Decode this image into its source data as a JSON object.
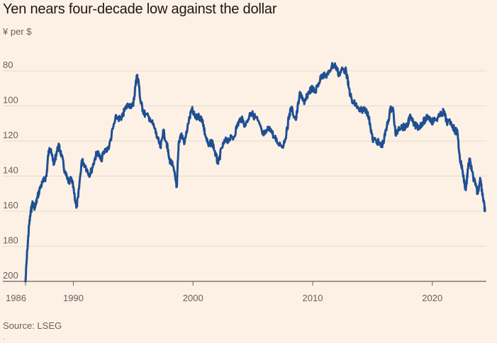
{
  "title": "Yen nears four-decade low against the dollar",
  "unit_label": "¥ per $",
  "source": "Source: LSEG",
  "footnote_mark": "·",
  "colors": {
    "background": "#fdf1e5",
    "line": "#1f4f93",
    "grid": "#e6d9ce",
    "axis": "#66605c"
  },
  "chart_data": {
    "type": "line",
    "title": "Yen nears four-decade low against the dollar",
    "ylabel": "¥ per $",
    "xlabel": "",
    "y_inverted": true,
    "ylim": [
      200,
      75
    ],
    "xlim": [
      1986.0,
      2024.4
    ],
    "yticks": [
      80,
      100,
      120,
      140,
      160,
      180,
      200
    ],
    "xticks": [
      1986,
      1990,
      2000,
      2010,
      2020
    ],
    "grid": true,
    "series": [
      {
        "name": "¥ per $",
        "points": [
          [
            1986.0,
            200
          ],
          [
            1986.15,
            182
          ],
          [
            1986.3,
            168
          ],
          [
            1986.45,
            160
          ],
          [
            1986.6,
            155
          ],
          [
            1986.8,
            158
          ],
          [
            1987.0,
            152
          ],
          [
            1987.25,
            146
          ],
          [
            1987.5,
            143
          ],
          [
            1987.75,
            140
          ],
          [
            1987.9,
            128
          ],
          [
            1988.0,
            124
          ],
          [
            1988.2,
            128
          ],
          [
            1988.4,
            133
          ],
          [
            1988.6,
            126
          ],
          [
            1988.8,
            123
          ],
          [
            1989.0,
            128
          ],
          [
            1989.3,
            138
          ],
          [
            1989.6,
            144
          ],
          [
            1989.8,
            142
          ],
          [
            1990.0,
            146
          ],
          [
            1990.25,
            158
          ],
          [
            1990.4,
            152
          ],
          [
            1990.7,
            131
          ],
          [
            1991.0,
            134
          ],
          [
            1991.3,
            139
          ],
          [
            1991.5,
            137
          ],
          [
            1991.8,
            130
          ],
          [
            1992.0,
            126
          ],
          [
            1992.3,
            131
          ],
          [
            1992.6,
            126
          ],
          [
            1993.0,
            123
          ],
          [
            1993.3,
            113
          ],
          [
            1993.6,
            106
          ],
          [
            1994.0,
            108
          ],
          [
            1994.3,
            102
          ],
          [
            1994.6,
            99
          ],
          [
            1995.0,
            100
          ],
          [
            1995.2,
            88
          ],
          [
            1995.3,
            83
          ],
          [
            1995.45,
            86
          ],
          [
            1995.6,
            97
          ],
          [
            1995.8,
            102
          ],
          [
            1996.0,
            105
          ],
          [
            1996.4,
            107
          ],
          [
            1996.8,
            113
          ],
          [
            1997.0,
            118
          ],
          [
            1997.3,
            124
          ],
          [
            1997.5,
            114
          ],
          [
            1997.8,
            121
          ],
          [
            1998.0,
            130
          ],
          [
            1998.3,
            134
          ],
          [
            1998.6,
            144
          ],
          [
            1998.65,
            146
          ],
          [
            1998.8,
            121
          ],
          [
            1999.0,
            116
          ],
          [
            1999.3,
            121
          ],
          [
            1999.6,
            110
          ],
          [
            1999.9,
            102
          ],
          [
            2000.2,
            107
          ],
          [
            2000.5,
            106
          ],
          [
            2000.8,
            108
          ],
          [
            2001.0,
            116
          ],
          [
            2001.3,
            123
          ],
          [
            2001.6,
            120
          ],
          [
            2001.9,
            128
          ],
          [
            2002.1,
            133
          ],
          [
            2002.4,
            124
          ],
          [
            2002.7,
            120
          ],
          [
            2003.0,
            119
          ],
          [
            2003.4,
            118
          ],
          [
            2003.7,
            111
          ],
          [
            2004.0,
            107
          ],
          [
            2004.4,
            111
          ],
          [
            2004.8,
            104
          ],
          [
            2005.0,
            105
          ],
          [
            2005.4,
            108
          ],
          [
            2005.8,
            116
          ],
          [
            2006.0,
            116
          ],
          [
            2006.4,
            112
          ],
          [
            2006.8,
            118
          ],
          [
            2007.0,
            120
          ],
          [
            2007.5,
            123
          ],
          [
            2007.8,
            116
          ],
          [
            2008.0,
            107
          ],
          [
            2008.2,
            101
          ],
          [
            2008.6,
            108
          ],
          [
            2008.9,
            94
          ],
          [
            2009.1,
            94
          ],
          [
            2009.3,
            99
          ],
          [
            2009.6,
            93
          ],
          [
            2009.9,
            90
          ],
          [
            2010.2,
            92
          ],
          [
            2010.5,
            87
          ],
          [
            2010.8,
            82
          ],
          [
            2011.0,
            83
          ],
          [
            2011.3,
            82
          ],
          [
            2011.6,
            77
          ],
          [
            2011.9,
            77
          ],
          [
            2012.2,
            82
          ],
          [
            2012.5,
            79
          ],
          [
            2012.8,
            80
          ],
          [
            2013.0,
            89
          ],
          [
            2013.3,
            98
          ],
          [
            2013.6,
            99
          ],
          [
            2013.9,
            103
          ],
          [
            2014.2,
            102
          ],
          [
            2014.5,
            102
          ],
          [
            2014.8,
            110
          ],
          [
            2015.0,
            119
          ],
          [
            2015.4,
            120
          ],
          [
            2015.7,
            123
          ],
          [
            2015.9,
            121
          ],
          [
            2016.2,
            112
          ],
          [
            2016.5,
            102
          ],
          [
            2016.7,
            101
          ],
          [
            2016.95,
            117
          ],
          [
            2017.2,
            112
          ],
          [
            2017.5,
            112
          ],
          [
            2017.9,
            112
          ],
          [
            2018.1,
            106
          ],
          [
            2018.5,
            111
          ],
          [
            2018.9,
            112
          ],
          [
            2019.1,
            110
          ],
          [
            2019.4,
            108
          ],
          [
            2019.7,
            106
          ],
          [
            2019.95,
            109
          ],
          [
            2020.2,
            108
          ],
          [
            2020.6,
            106
          ],
          [
            2020.95,
            103
          ],
          [
            2021.2,
            109
          ],
          [
            2021.6,
            110
          ],
          [
            2021.9,
            114
          ],
          [
            2022.1,
            115
          ],
          [
            2022.3,
            130
          ],
          [
            2022.5,
            136
          ],
          [
            2022.8,
            148
          ],
          [
            2022.95,
            138
          ],
          [
            2023.1,
            130
          ],
          [
            2023.3,
            137
          ],
          [
            2023.6,
            145
          ],
          [
            2023.8,
            150
          ],
          [
            2024.0,
            141
          ],
          [
            2024.2,
            150
          ],
          [
            2024.3,
            155
          ],
          [
            2024.4,
            160
          ]
        ]
      }
    ]
  }
}
